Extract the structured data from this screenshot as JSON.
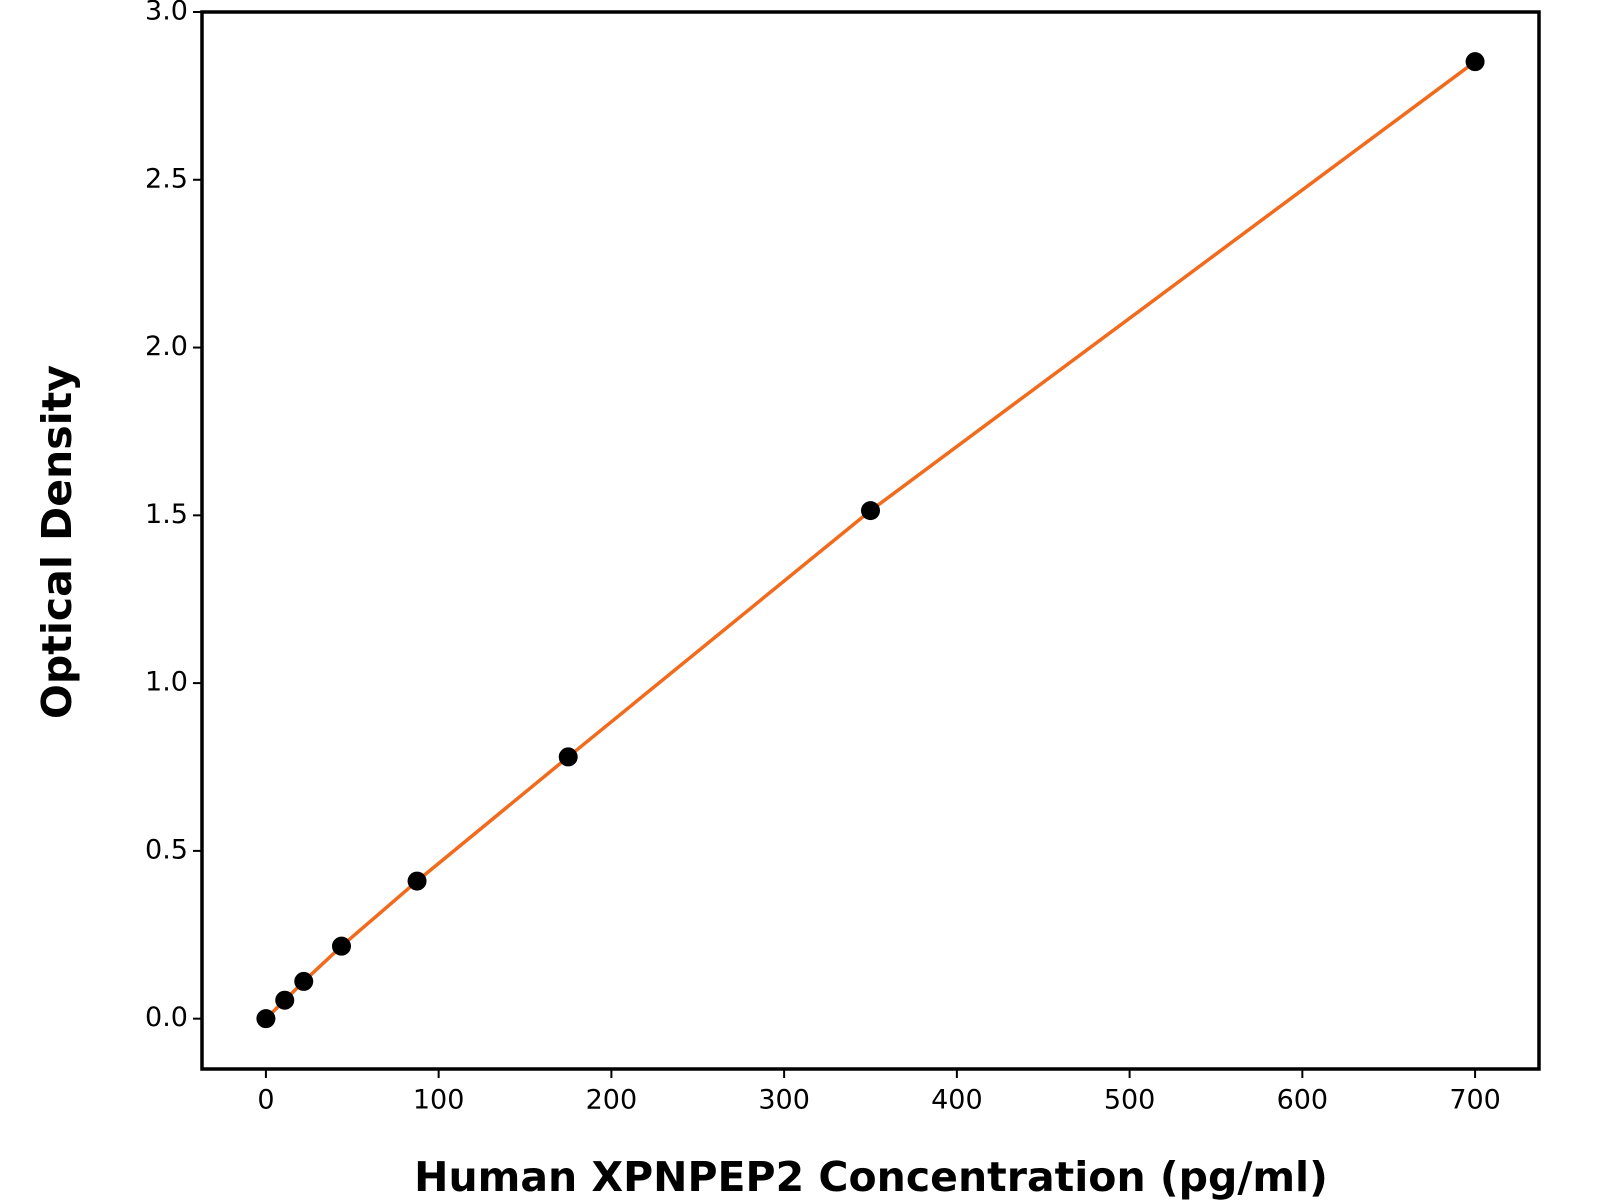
{
  "chart_data": {
    "type": "line",
    "x_label": "Human XPNPEP2 Concentration (pg/ml)",
    "y_label": "Optical Density",
    "series": [
      {
        "color": "#f26b1d",
        "marker_color": "#000000",
        "x": [
          0,
          10.9,
          21.9,
          43.75,
          87.5,
          175,
          350,
          700
        ],
        "values": [
          0,
          0.055,
          0.111,
          0.216,
          0.41,
          0.78,
          1.514,
          2.852
        ]
      }
    ],
    "xlim": [
      -37,
      737
    ],
    "ylim": [
      -0.15,
      3.0
    ],
    "xticks": [
      0,
      100,
      200,
      300,
      400,
      500,
      600,
      700
    ],
    "yticks": [
      {
        "value": 0,
        "label": "0.0"
      },
      {
        "value": 0.5,
        "label": "0.5"
      },
      {
        "value": 1,
        "label": "1.0"
      },
      {
        "value": 1.5,
        "label": "1.5"
      },
      {
        "value": 2,
        "label": "2.0"
      },
      {
        "value": 2.5,
        "label": "2.5"
      },
      {
        "value": 3,
        "label": "3.0"
      }
    ],
    "grid": false
  }
}
